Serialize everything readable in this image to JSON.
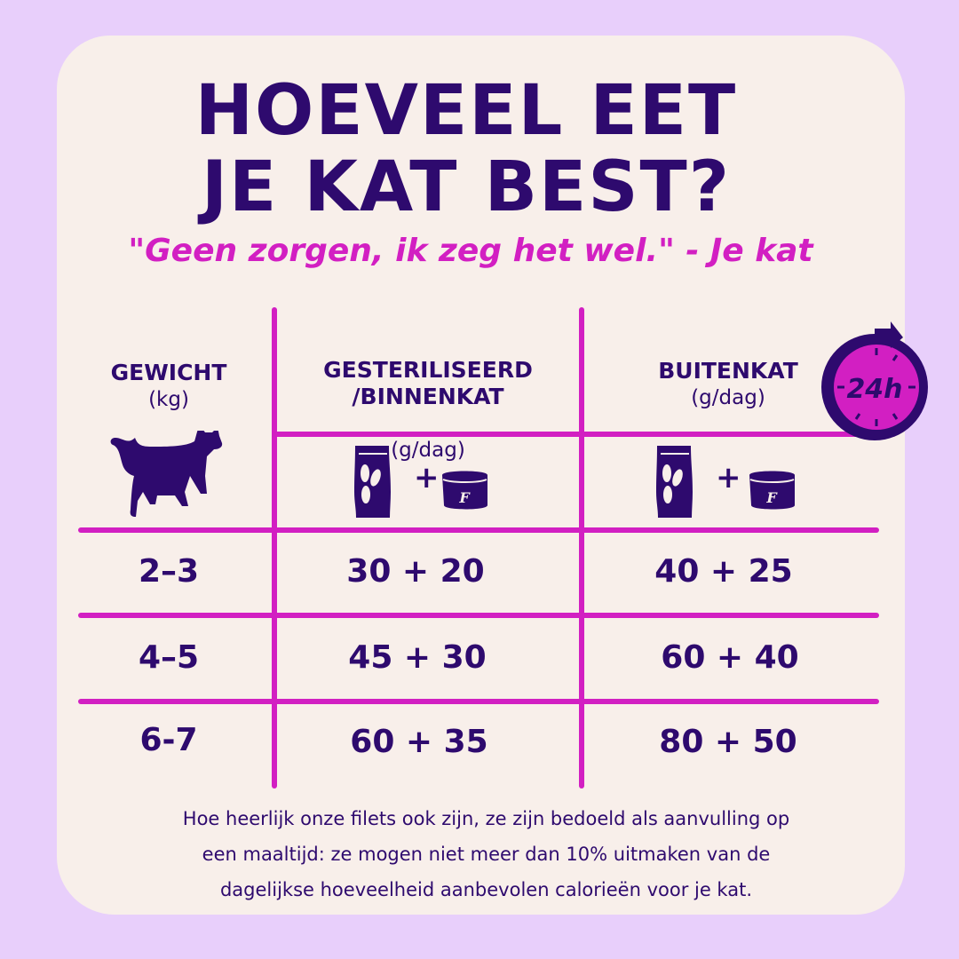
{
  "title": {
    "line1": "HOEVEEL EET",
    "line2": "JE KAT BEST?"
  },
  "subtitle": "\"Geen zorgen, ik zeg het wel.\" - Je kat",
  "colors": {
    "background": "#e8cffb",
    "card": "#f8efea",
    "primary": "#2e0a6e",
    "accent": "#d21fc2"
  },
  "table": {
    "columns": [
      {
        "label": "GEWICHT",
        "unit": "(kg)",
        "icon": "cat-icon"
      },
      {
        "label": "GESTERILISEERD\n/BINNENKAT",
        "unit": "(g/dag)",
        "icon": "dry-food-bag-plus-wet-food-can-icon"
      },
      {
        "label": "BUITENKAT",
        "unit": "(g/dag)",
        "icon": "dry-food-bag-plus-wet-food-can-icon"
      }
    ],
    "plus": "+",
    "can_letter": "F",
    "clock_label": "24h",
    "rows": [
      {
        "weight": "2–3",
        "indoor": "30 + 20",
        "outdoor": "40 + 25"
      },
      {
        "weight": "4–5",
        "indoor": "45 + 30",
        "outdoor": "60 + 40"
      },
      {
        "weight": "6-7",
        "indoor": "60 + 35",
        "outdoor": "80 + 50"
      }
    ]
  },
  "footer": {
    "line1": "Hoe heerlijk onze filets ook zijn, ze zijn bedoeld als aanvulling op",
    "line2": "een maaltijd: ze mogen niet meer dan 10% uitmaken van de",
    "line3": "dagelijkse hoeveelheid aanbevolen calorieën voor je kat."
  }
}
